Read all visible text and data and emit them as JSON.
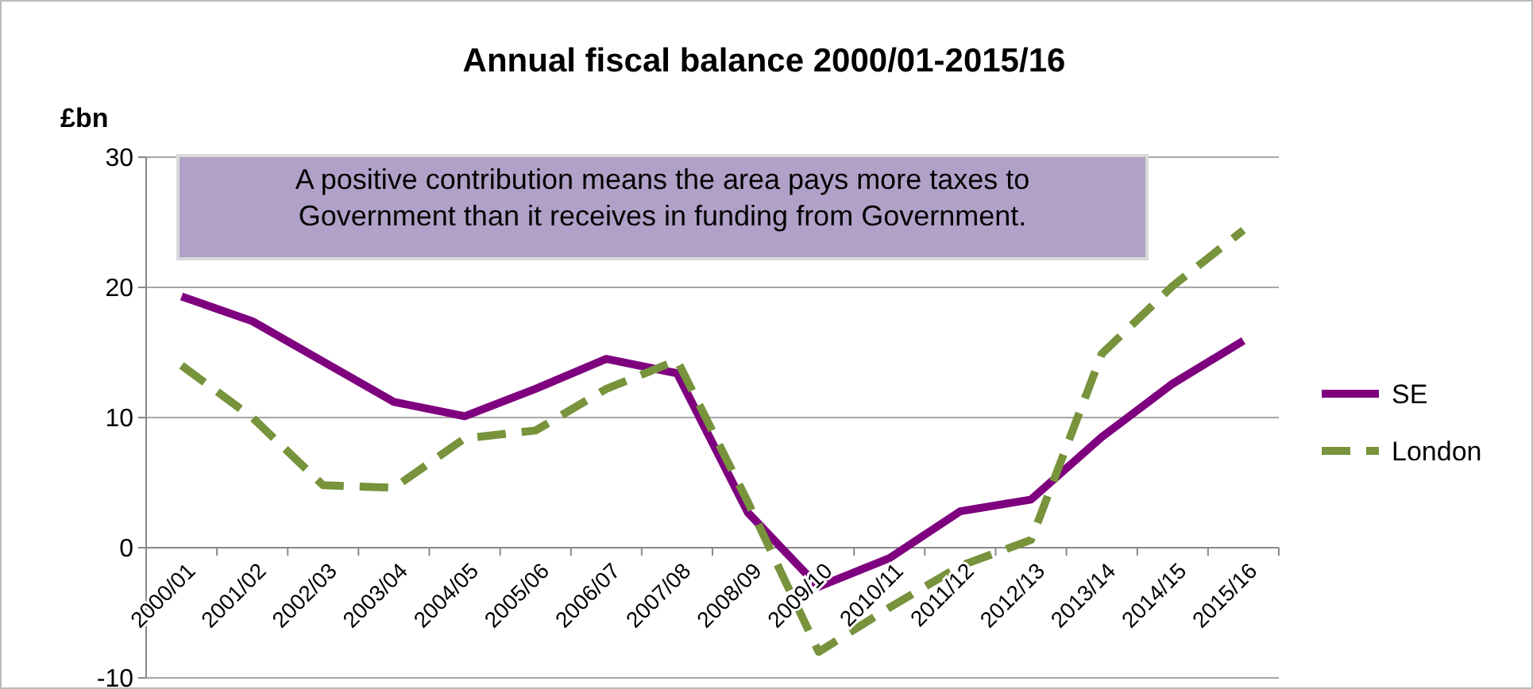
{
  "chart_data": {
    "type": "line",
    "title": "Annual fiscal balance 2000/01-2015/16",
    "ylabel": "£bn",
    "categories": [
      "2000/01",
      "2001/02",
      "2002/03",
      "2003/04",
      "2004/05",
      "2005/06",
      "2006/07",
      "2007/08",
      "2008/09",
      "2009/10",
      "2010/11",
      "2011/12",
      "2012/13",
      "2013/14",
      "2014/15",
      "2015/16"
    ],
    "series": [
      {
        "name": "SE",
        "color": "#7f007f",
        "line_style": "solid",
        "values": [
          19.3,
          17.4,
          14.3,
          11.2,
          10.1,
          12.2,
          14.5,
          13.4,
          2.7,
          -3.0,
          -0.8,
          2.8,
          3.7,
          8.5,
          12.6,
          15.9
        ]
      },
      {
        "name": "London",
        "color": "#77933c",
        "line_style": "dashed",
        "values": [
          14.0,
          10.0,
          4.8,
          4.6,
          8.4,
          9.0,
          12.2,
          14.4,
          3.5,
          -8.0,
          -4.6,
          -1.4,
          0.6,
          14.9,
          20.1,
          24.4
        ]
      }
    ],
    "ylim": [
      -10,
      30
    ],
    "yticks": [
      -10,
      0,
      10,
      20,
      30
    ],
    "grid": "y",
    "legend": "right",
    "annotations": [
      "A positive contribution means the area pays more taxes to Government than it receives in funding from Government."
    ]
  }
}
